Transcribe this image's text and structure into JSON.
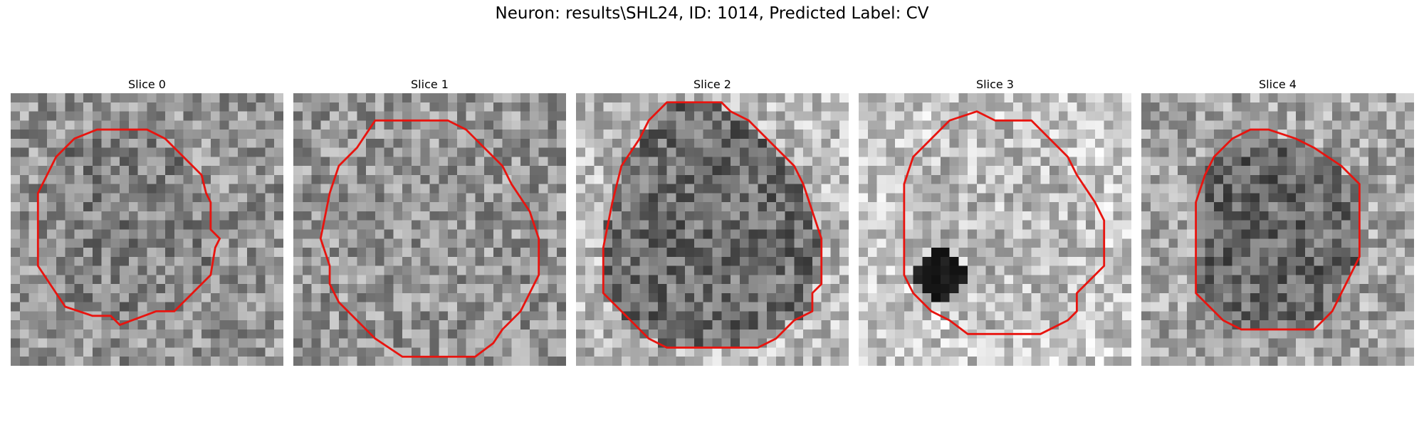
{
  "figure": {
    "title": "Neuron: results\\SHL24, ID: 1014, Predicted Label: CV"
  },
  "panels": [
    {
      "title": "Slice 0",
      "seed": 11,
      "base": 150,
      "inner": 130,
      "contour_color": "#e8140f",
      "dark_spot": null
    },
    {
      "title": "Slice 1",
      "seed": 23,
      "base": 150,
      "inner": 150,
      "contour_color": "#e8140f",
      "dark_spot": null
    },
    {
      "title": "Slice 2",
      "seed": 37,
      "base": 185,
      "inner": 110,
      "contour_color": "#e8140f",
      "dark_spot": null
    },
    {
      "title": "Slice 3",
      "seed": 53,
      "base": 200,
      "inner": 185,
      "contour_color": "#e8140f",
      "dark_spot": "lower-left"
    },
    {
      "title": "Slice 4",
      "seed": 71,
      "base": 165,
      "inner": 105,
      "contour_color": "#e8140f",
      "dark_spot": null
    }
  ]
}
